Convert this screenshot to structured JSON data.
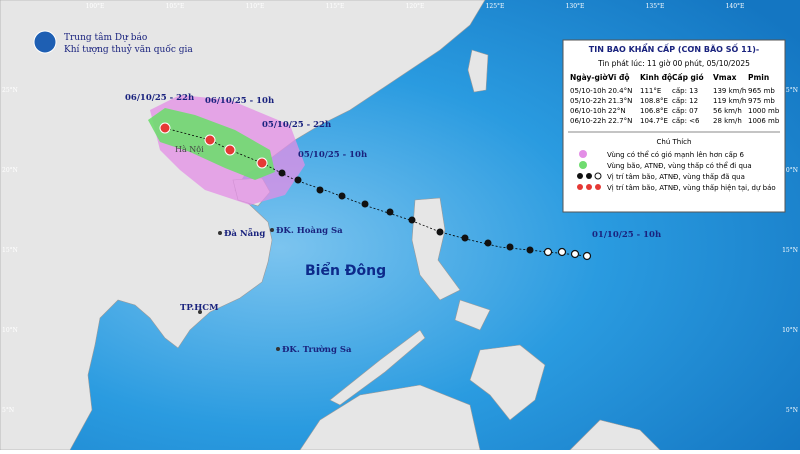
{
  "header": {
    "org_line1": "Trung tâm Dự báo",
    "org_line2": "Khí tượng thuỷ văn quốc gia"
  },
  "bulletin": {
    "title": "TIN BAO KHẨN CẤP (CƠN BÃO SỐ 11)-",
    "issued": "Tin phát lúc: 11 giờ 00 phút, 05/10/2025",
    "columns": [
      "Ngày-giờ",
      "Vĩ độ",
      "Kinh độ",
      "Cấp gió",
      "Vmax",
      "Pmin"
    ],
    "rows": [
      [
        "05/10-10h",
        "20.4°N",
        "111°E",
        "cấp: 13",
        "139 km/h",
        "965 mb"
      ],
      [
        "05/10-22h",
        "21.3°N",
        "108.8°E",
        "cấp: 12",
        "119 km/h",
        "975 mb"
      ],
      [
        "06/10-10h",
        "22°N",
        "106.8°E",
        "cấp: 07",
        "56 km/h",
        "1000 mb"
      ],
      [
        "06/10-22h",
        "22.7°N",
        "104.7°E",
        "cấp: <6",
        "28 km/h",
        "1006 mb"
      ]
    ]
  },
  "legend": {
    "title": "Chú Thích",
    "items": [
      "Vùng có thể có gió mạnh lên hơn cấp 6",
      "Vùng bão, ATNĐ, vùng thấp có thể đi qua",
      "Vị trí tâm bão, ATNĐ, vùng thấp đã qua",
      "Vị trí tâm bão, ATNĐ, vùng thấp hiện tại, dự báo"
    ]
  },
  "map_labels": {
    "t1": "06/10/25 - 22h",
    "t2": "06/10/25 - 10h",
    "t3": "05/10/25 - 22h",
    "t4": "05/10/25 - 10h",
    "t5": "01/10/25 - 10h",
    "hanoi": "Hà Nội",
    "danang": "Đà Nẵng",
    "hoangsa": "ĐK. Hoàng Sa",
    "biendong": "Biển Đông",
    "hcm": "TP.HCM",
    "truongsa": "ĐK. Trường Sa"
  },
  "longitudes": [
    "100°E",
    "105°E",
    "110°E",
    "115°E",
    "120°E",
    "125°E",
    "130°E",
    "135°E",
    "140°E"
  ],
  "latitudes": [
    "25°N",
    "20°N",
    "15°N",
    "10°N",
    "5°N"
  ]
}
